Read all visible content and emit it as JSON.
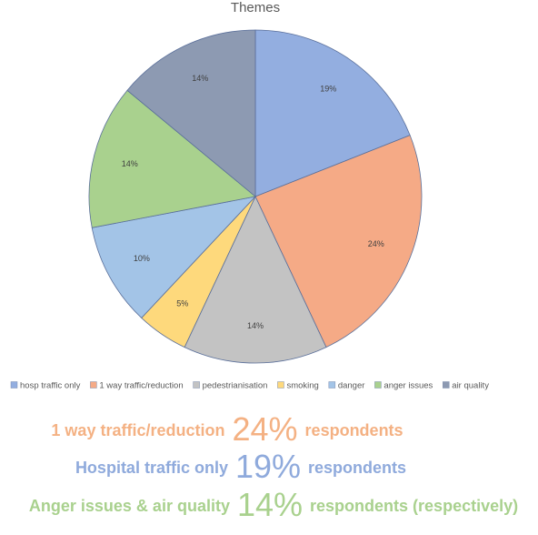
{
  "chart_data": {
    "type": "pie",
    "title": "Themes",
    "categories": [
      "hosp traffic only",
      "1 way traffic/reduction",
      "pedestrianisation",
      "smoking",
      "danger",
      "anger issues",
      "air quality"
    ],
    "values": [
      19,
      24,
      14,
      5,
      10,
      14,
      14
    ],
    "value_labels": [
      "19%",
      "24%",
      "14%",
      "5%",
      "10%",
      "14%",
      "14%"
    ],
    "colors": [
      "#93aee0",
      "#f5aa86",
      "#c3c3c3",
      "#fed97c",
      "#a3c4e7",
      "#a9d18e",
      "#8d9ab2"
    ],
    "legend": "bottom",
    "annotations": [
      {
        "before": "1 way traffic/reduction",
        "highlight": "24%",
        "after": "respondents",
        "color": "#f4b183"
      },
      {
        "before": "Hospital traffic only",
        "highlight": "19%",
        "after": "respondents",
        "color": "#8faadc"
      },
      {
        "before": "Anger issues & air quality",
        "highlight": "14%",
        "after": "respondents (respectively)",
        "color": "#a9d18e"
      }
    ]
  }
}
